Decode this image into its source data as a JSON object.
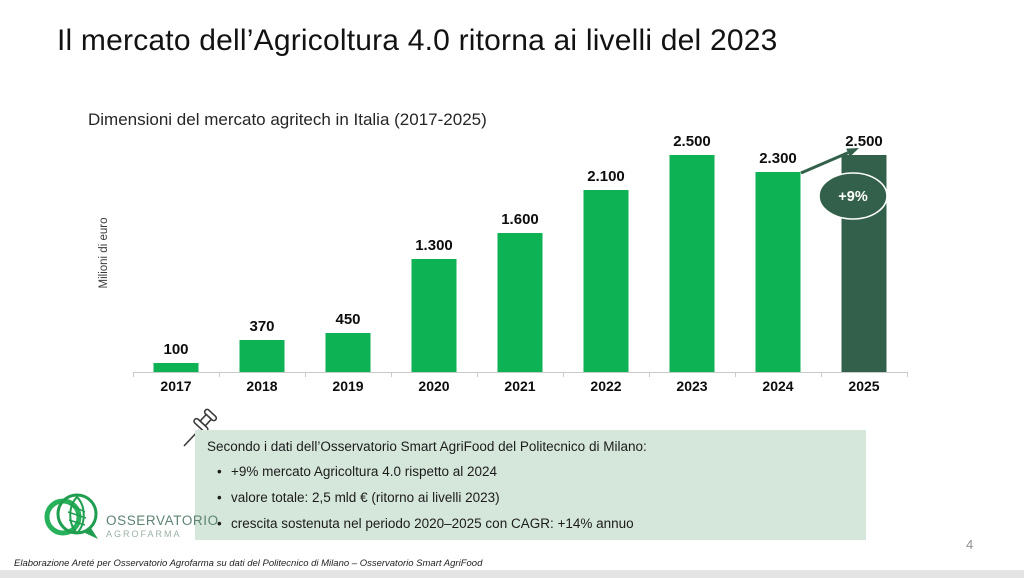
{
  "slide": {
    "title": "Il mercato dell’Agricoltura 4.0 ritorna ai livelli del 2023",
    "page_number": "4",
    "footer": "Elaborazione Areté per Osservatorio Agrofarma su dati del Politecnico di Milano – Osservatorio Smart AgriFood"
  },
  "chart_data": {
    "type": "bar",
    "title": "Dimensioni del mercato agritech in Italia (2017-2025)",
    "ylabel": "Milioni di euro",
    "xlabel": "",
    "categories": [
      "2017",
      "2018",
      "2019",
      "2020",
      "2021",
      "2022",
      "2023",
      "2024",
      "2025"
    ],
    "values": [
      100,
      370,
      450,
      1300,
      1600,
      2100,
      2500,
      2300,
      2500
    ],
    "value_labels": [
      "100",
      "370",
      "450",
      "1.300",
      "1.600",
      "2.100",
      "2.500",
      "2.300",
      "2.500"
    ],
    "ylim": [
      0,
      2500
    ],
    "grid": false,
    "legend": "none",
    "bar_color": "#0db254",
    "highlight_color": "#33604a",
    "highlight_index": 8,
    "annotation": {
      "label": "+9%",
      "from_category": "2024",
      "to_category": "2025"
    }
  },
  "callout": {
    "intro": "Secondo i dati dell’Osservatorio Smart AgriFood del Politecnico di Milano:",
    "bullets": [
      "+9% mercato Agricoltura 4.0 rispetto al 2024",
      "valore totale: 2,5 mld € (ritorno ai livelli 2023)",
      "crescita sostenuta nel periodo 2020–2025 con CAGR: +14% annuo"
    ],
    "background": "#d5e6da"
  },
  "logo": {
    "line1": "OSSERVATORIO",
    "line2": "AGROFARMA"
  }
}
